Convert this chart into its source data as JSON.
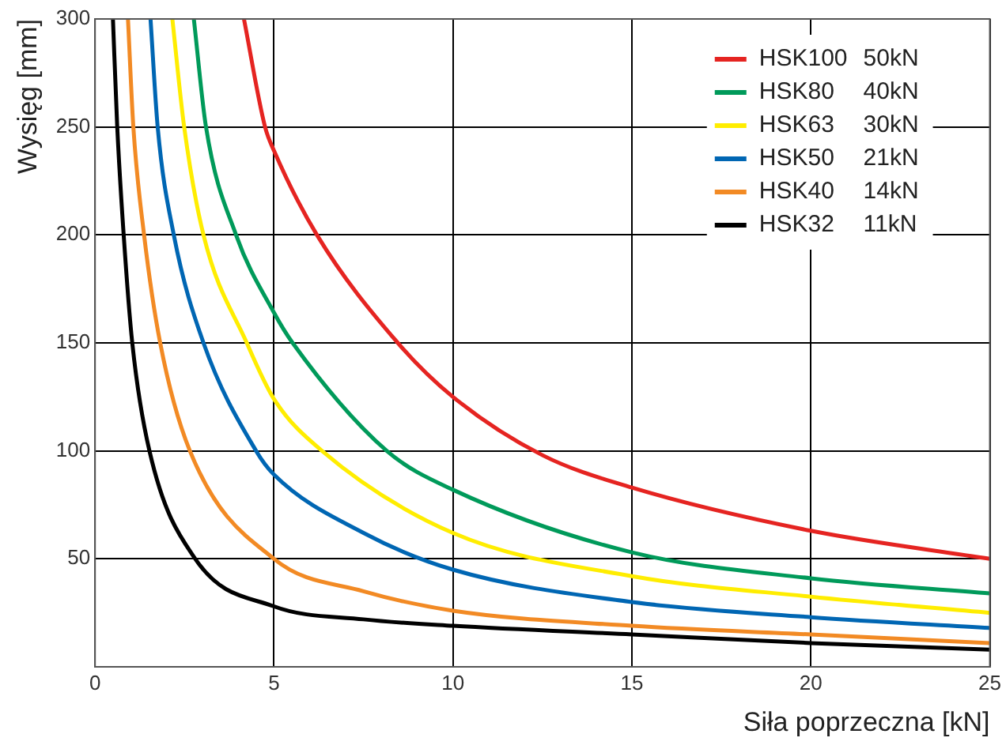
{
  "chart_data": {
    "type": "line",
    "xlabel": "Siła poprzeczna [kN]",
    "ylabel": "Wysięg [mm]",
    "xlim": [
      0,
      25
    ],
    "xticks": [
      0,
      5,
      10,
      15,
      20,
      25
    ],
    "ylim": [
      0,
      300
    ],
    "yticks": [
      50,
      100,
      150,
      200,
      250,
      300
    ],
    "grid": true,
    "legend": "top right",
    "marker": "none",
    "line_style": "solid",
    "series": [
      {
        "name": "HSK100 50kN",
        "color": "#e52421",
        "x": [
          4.16,
          4.75,
          5,
          6.2,
          8.46,
          10,
          12.5,
          15,
          20,
          25
        ],
        "values": [
          300,
          250,
          239,
          200,
          150,
          125,
          98,
          83,
          63,
          50
        ]
      },
      {
        "name": "HSK80 40kN",
        "color": "#009a5a",
        "x": [
          2.76,
          3.1,
          3.94,
          5,
          5.52,
          8.15,
          10,
          15,
          20,
          25
        ],
        "values": [
          300,
          250,
          200,
          164,
          150,
          100,
          82,
          53,
          41,
          34
        ]
      },
      {
        "name": "HSK63 30kN",
        "color": "#ffed00",
        "x": [
          2.16,
          2.49,
          3.03,
          4.24,
          5,
          6.34,
          10,
          15,
          20,
          25
        ],
        "values": [
          300,
          250,
          200,
          150,
          124,
          100,
          62,
          42,
          32.5,
          25
        ]
      },
      {
        "name": "HSK50 21kN",
        "color": "#0066b3",
        "x": [
          1.55,
          1.75,
          2.2,
          3.03,
          4.5,
          5,
          7.5,
          10,
          15,
          20,
          25
        ],
        "values": [
          300,
          250,
          200,
          150,
          100,
          89,
          62,
          45,
          30,
          23,
          18
        ]
      },
      {
        "name": "HSK40 14kN",
        "color": "#f28a24",
        "x": [
          0.92,
          1.07,
          1.37,
          1.82,
          2.65,
          5,
          7.5,
          10,
          15,
          20,
          25
        ],
        "values": [
          300,
          250,
          200,
          150,
          100,
          50,
          35,
          26,
          19,
          15,
          11
        ]
      },
      {
        "name": "HSK32 11kN",
        "color": "#000000",
        "x": [
          0.5,
          0.62,
          0.8,
          1.04,
          1.52,
          2.8,
          5,
          7.5,
          10,
          15,
          20,
          25
        ],
        "values": [
          300,
          250,
          200,
          150,
          100,
          50,
          28,
          22,
          19,
          15,
          11,
          8
        ]
      }
    ]
  }
}
